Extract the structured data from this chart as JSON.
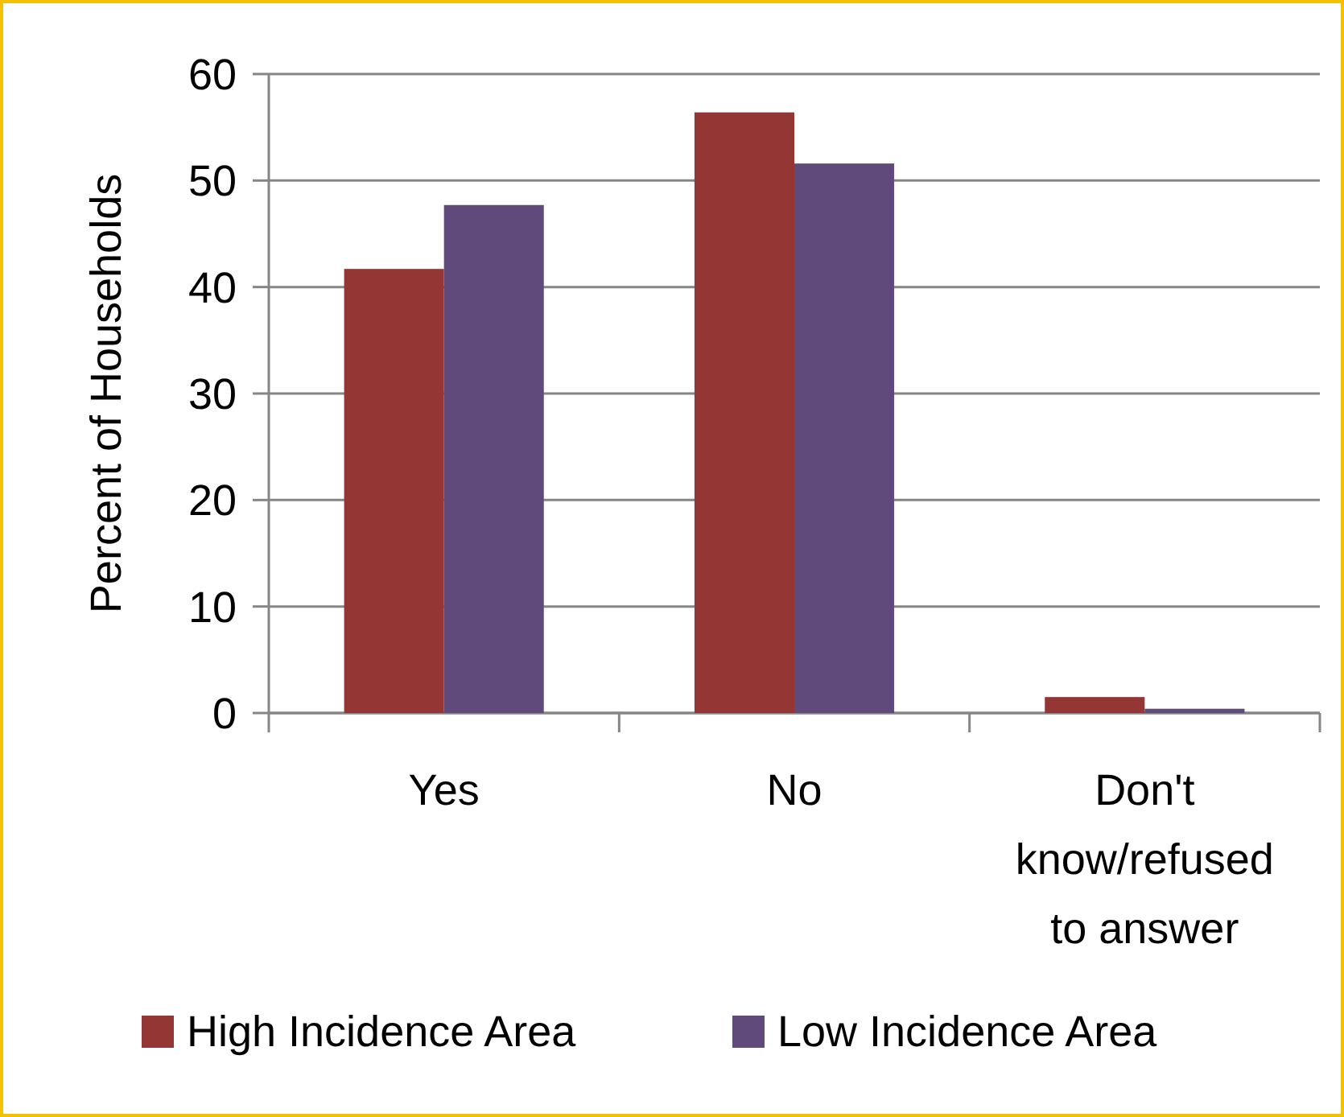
{
  "chart_data": {
    "type": "bar",
    "ylabel": "Percent of Households",
    "categories": [
      "Yes",
      "No",
      "Don't know/refused to answer"
    ],
    "series": [
      {
        "name": "High Incidence Area",
        "color": "#943634",
        "values": [
          41.7,
          56.4,
          1.5
        ]
      },
      {
        "name": "Low Incidence Area",
        "color": "#604a7b",
        "values": [
          47.7,
          51.6,
          0.4
        ]
      }
    ],
    "ylim": [
      0,
      60
    ],
    "yticks": [
      0,
      10,
      20,
      30,
      40,
      50,
      60
    ],
    "grid": "y",
    "legend": "bottom"
  }
}
